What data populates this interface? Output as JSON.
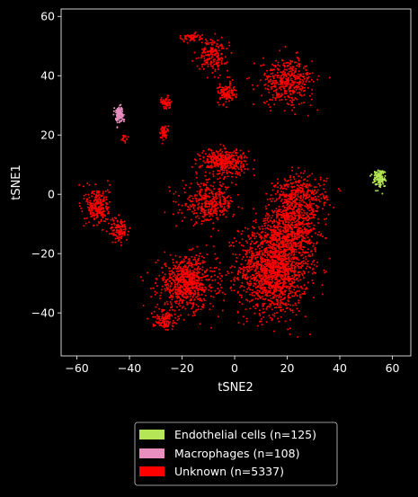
{
  "chart_data": {
    "type": "scatter",
    "xlabel": "tSNE2",
    "ylabel": "tSNE1",
    "xlim": [
      -66,
      67
    ],
    "ylim": [
      -54.5,
      62.5
    ],
    "xticks": [
      -60,
      -40,
      -20,
      0,
      20,
      40,
      60
    ],
    "yticks": [
      -40,
      -20,
      0,
      20,
      40,
      60
    ],
    "grid": false,
    "legend_position": "bottom-center, below plot",
    "series": [
      {
        "name": "Endothelial cells (n=125)",
        "color": "#b5e655",
        "points": 125,
        "clusters": [
          {
            "center": [
              55,
              5.5
            ],
            "spread": [
              2.2,
              2.8
            ],
            "weight": 1
          }
        ]
      },
      {
        "name": "Macrophages (n=108)",
        "color": "#e98fc0",
        "points": 108,
        "clusters": [
          {
            "center": [
              -44,
              27
            ],
            "spread": [
              1.6,
              2.6
            ],
            "weight": 1
          }
        ]
      },
      {
        "name": "Unknown (n=5337)",
        "color": "#ff0000",
        "points": 5337,
        "clusters": [
          {
            "center": [
              15,
              -25
            ],
            "spread": [
              12,
              14
            ],
            "weight": 26
          },
          {
            "center": [
              22,
              -10
            ],
            "spread": [
              9,
              10
            ],
            "weight": 10
          },
          {
            "center": [
              -18,
              -30
            ],
            "spread": [
              10,
              8
            ],
            "weight": 12
          },
          {
            "center": [
              -10,
              -3
            ],
            "spread": [
              9,
              6
            ],
            "weight": 6
          },
          {
            "center": [
              -4,
              11
            ],
            "spread": [
              8,
              4
            ],
            "weight": 6
          },
          {
            "center": [
              25,
              0
            ],
            "spread": [
              9,
              6
            ],
            "weight": 5
          },
          {
            "center": [
              20,
              38
            ],
            "spread": [
              9,
              7
            ],
            "weight": 7
          },
          {
            "center": [
              -8,
              47
            ],
            "spread": [
              5,
              5
            ],
            "weight": 3
          },
          {
            "center": [
              -17,
              53
            ],
            "spread": [
              4,
              1.3
            ],
            "weight": 1
          },
          {
            "center": [
              -3,
              34
            ],
            "spread": [
              3,
              3
            ],
            "weight": 2
          },
          {
            "center": [
              -52,
              -4
            ],
            "spread": [
              4,
              6
            ],
            "weight": 4
          },
          {
            "center": [
              -44,
              -12
            ],
            "spread": [
              3,
              4
            ],
            "weight": 2
          },
          {
            "center": [
              -26,
              31
            ],
            "spread": [
              1.5,
              2
            ],
            "weight": 1
          },
          {
            "center": [
              -27,
              21
            ],
            "spread": [
              1.2,
              2
            ],
            "weight": 1
          },
          {
            "center": [
              -42,
              19
            ],
            "spread": [
              1,
              1
            ],
            "weight": 0.3
          },
          {
            "center": [
              -27,
              -42
            ],
            "spread": [
              4,
              3
            ],
            "weight": 2
          }
        ]
      }
    ]
  }
}
